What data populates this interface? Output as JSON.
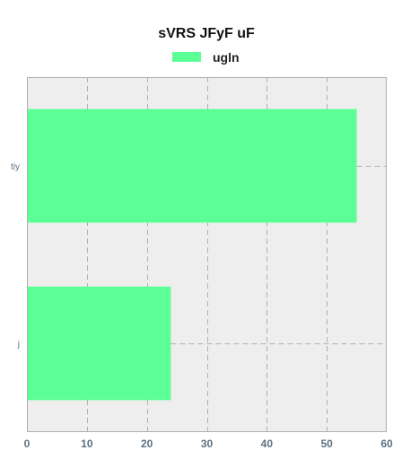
{
  "chart_data": {
    "type": "bar",
    "orientation": "horizontal",
    "title": "sVRS JFyF uF",
    "categories": [
      "tiy",
      "j"
    ],
    "series": [
      {
        "name": "ugln",
        "values": [
          55,
          24
        ],
        "color": "#5cff96"
      }
    ],
    "xlim": [
      0,
      60
    ],
    "xticks": [
      0,
      10,
      20,
      30,
      40,
      50,
      60
    ],
    "xlabel": "",
    "ylabel": "",
    "grid": true,
    "legend_position": "top-center",
    "background_color": "#eeeeee",
    "grid_color": "#b0b0b0"
  }
}
